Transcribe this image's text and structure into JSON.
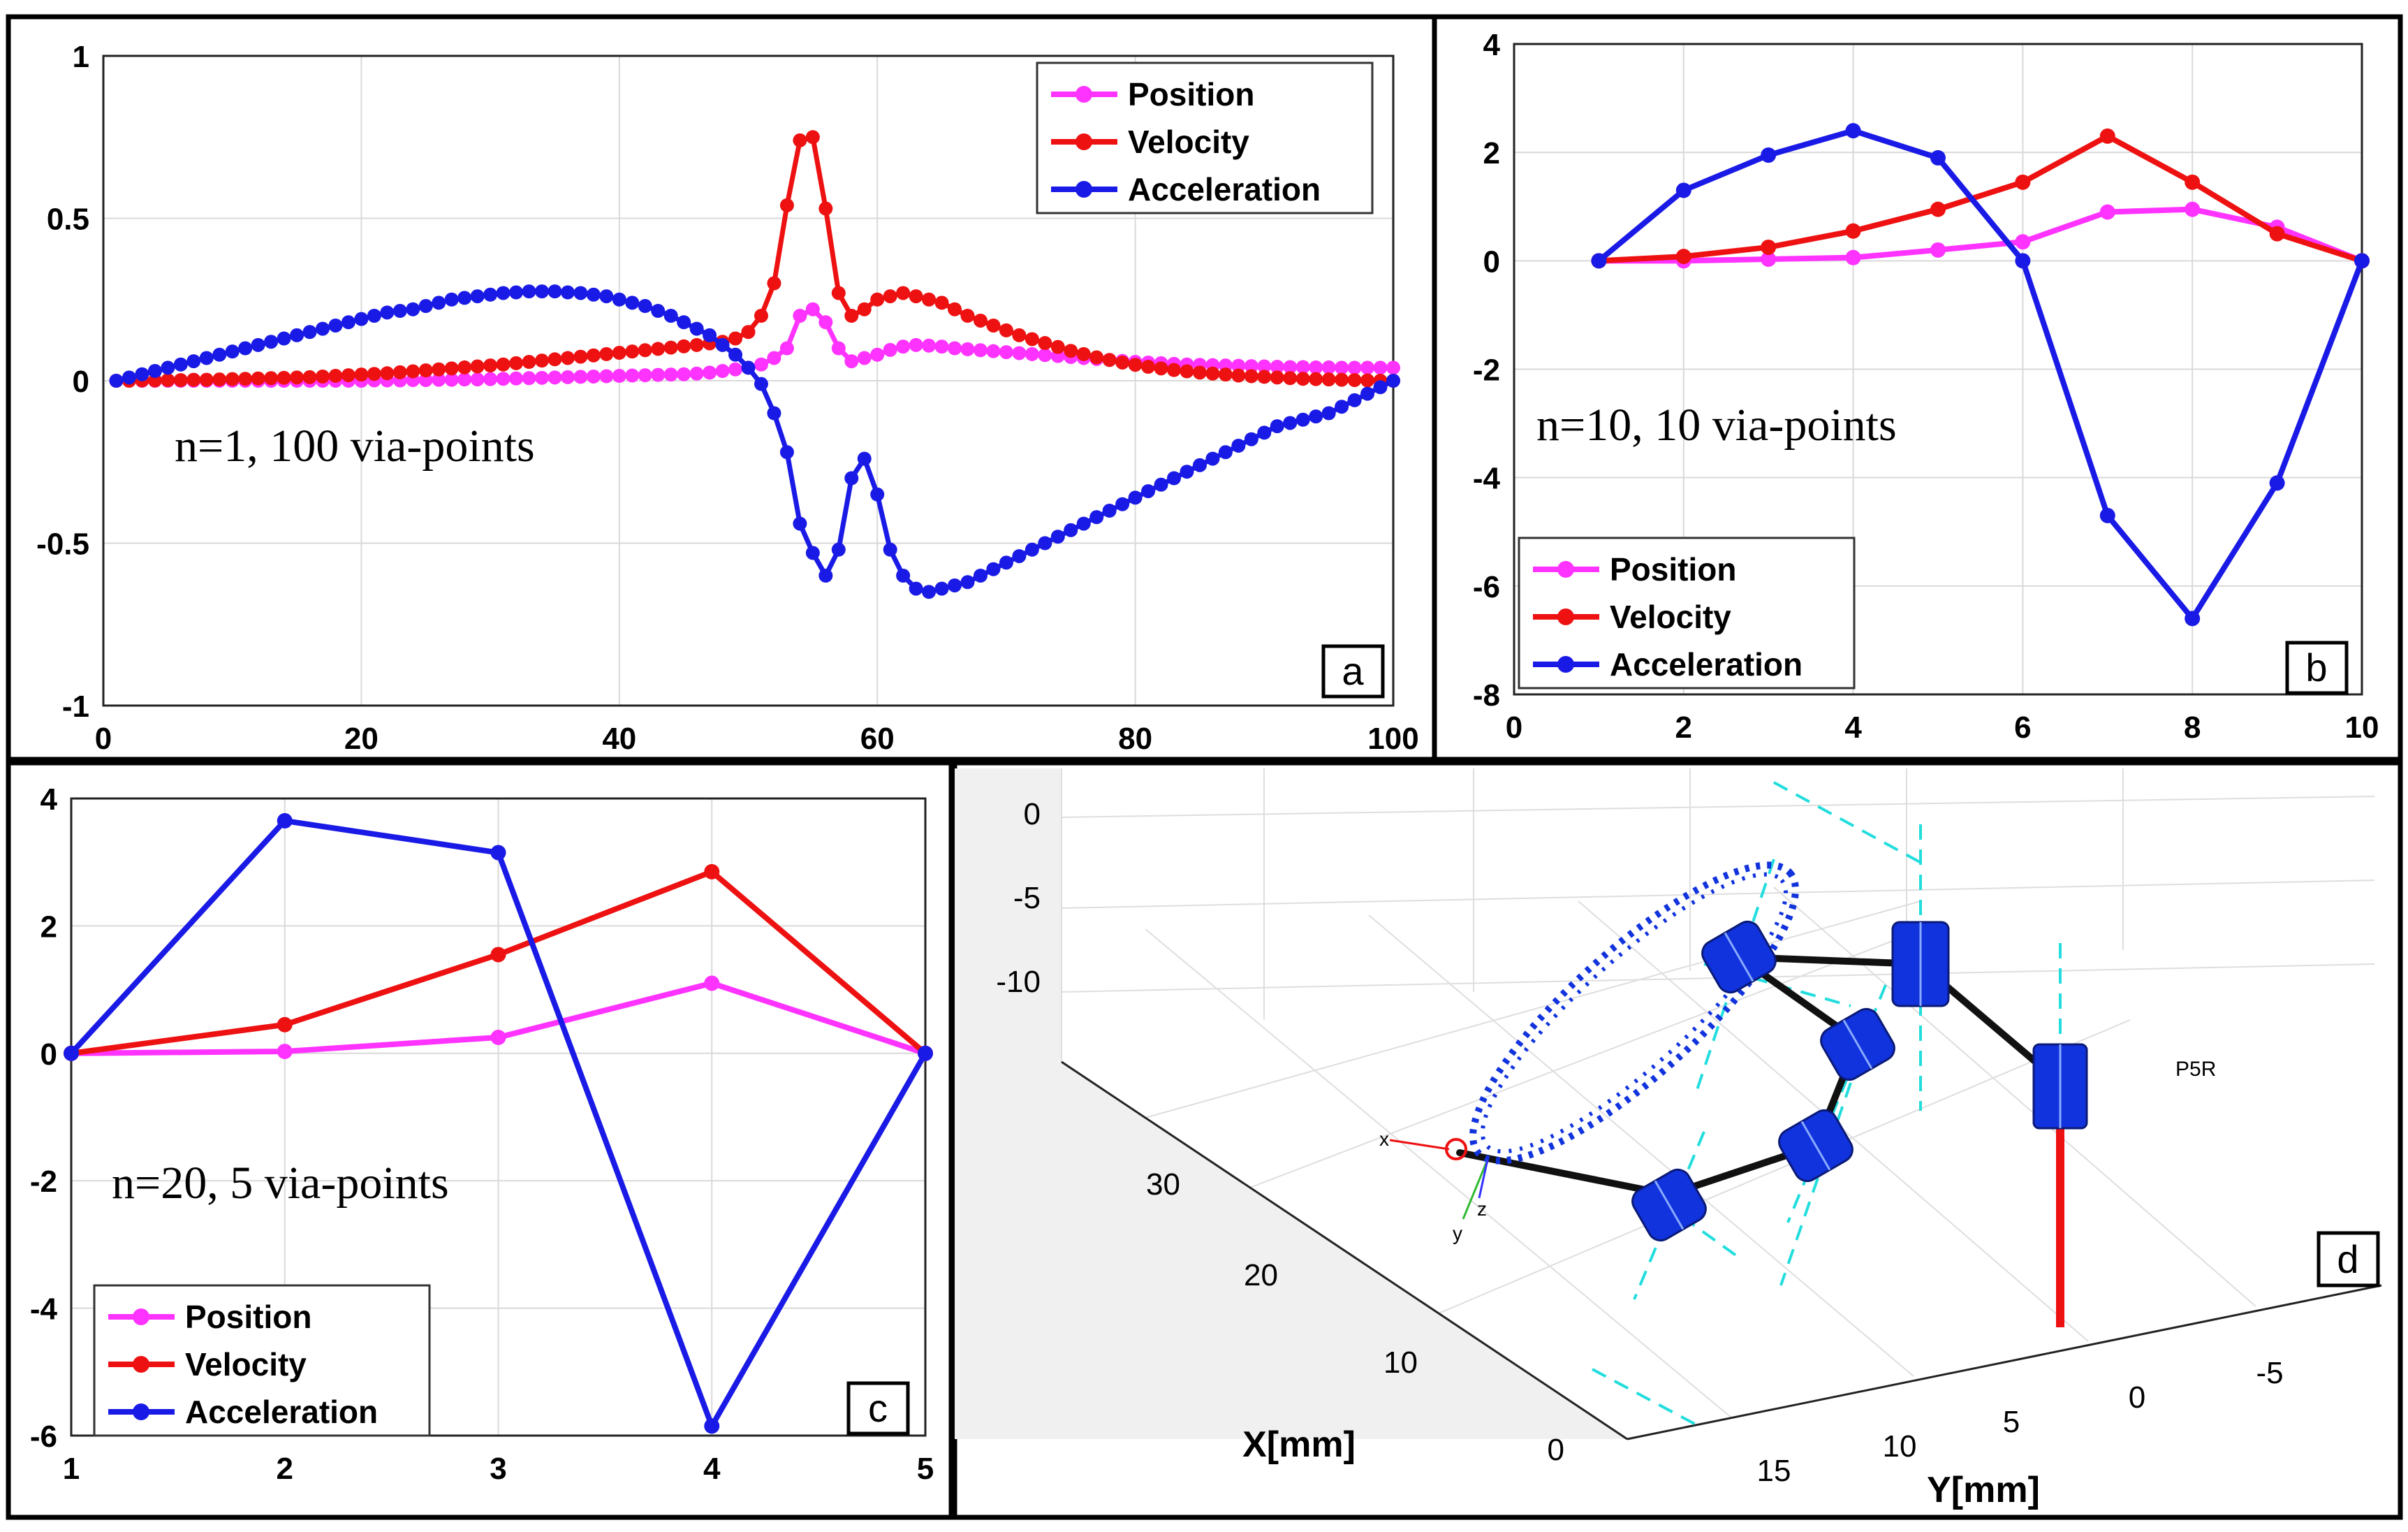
{
  "colors": {
    "position": "#ff33ff",
    "velocity": "#ee1111",
    "acceleration": "#1a1ae6",
    "grid": "#d9d9d9",
    "robot": "#1133dd",
    "axis_dash": "#22dddd",
    "link": "#111111",
    "post": "#ee1111"
  },
  "chart_data": [
    {
      "type": "line",
      "id": "a",
      "badge": "a",
      "annotation": "n=1,   100 via-points",
      "xlim": [
        0,
        100
      ],
      "ylim": [
        -1,
        1
      ],
      "xticks": [
        0,
        20,
        40,
        60,
        80,
        100
      ],
      "yticks": [
        -1,
        -0.5,
        0,
        0.5,
        1
      ],
      "xtick_labels": [
        "0",
        "20",
        "40",
        "60",
        "80",
        "100"
      ],
      "ytick_labels": [
        "-1",
        "-0.5",
        "0",
        "0.5",
        "1"
      ],
      "grid": true,
      "legend_position": "top-right",
      "x": [
        1,
        2,
        3,
        4,
        5,
        6,
        7,
        8,
        9,
        10,
        11,
        12,
        13,
        14,
        15,
        16,
        17,
        18,
        19,
        20,
        21,
        22,
        23,
        24,
        25,
        26,
        27,
        28,
        29,
        30,
        31,
        32,
        33,
        34,
        35,
        36,
        37,
        38,
        39,
        40,
        41,
        42,
        43,
        44,
        45,
        46,
        47,
        48,
        49,
        50,
        51,
        52,
        53,
        54,
        55,
        56,
        57,
        58,
        59,
        60,
        61,
        62,
        63,
        64,
        65,
        66,
        67,
        68,
        69,
        70,
        71,
        72,
        73,
        74,
        75,
        76,
        77,
        78,
        79,
        80,
        81,
        82,
        83,
        84,
        85,
        86,
        87,
        88,
        89,
        90,
        91,
        92,
        93,
        94,
        95,
        96,
        97,
        98,
        99,
        100
      ],
      "series": [
        {
          "name": "Position",
          "color": "#ff33ff",
          "values": [
            0,
            0,
            0,
            0,
            0,
            0,
            0,
            0,
            0,
            0,
            0,
            0,
            0,
            0,
            0,
            0,
            0,
            0,
            0,
            0,
            0.001,
            0.001,
            0.001,
            0.002,
            0.002,
            0.003,
            0.003,
            0.004,
            0.004,
            0.005,
            0.006,
            0.007,
            0.008,
            0.009,
            0.01,
            0.011,
            0.012,
            0.013,
            0.014,
            0.015,
            0.016,
            0.017,
            0.018,
            0.019,
            0.02,
            0.022,
            0.025,
            0.03,
            0.035,
            0.04,
            0.05,
            0.07,
            0.1,
            0.2,
            0.22,
            0.18,
            0.1,
            0.06,
            0.07,
            0.08,
            0.095,
            0.105,
            0.11,
            0.108,
            0.105,
            0.1,
            0.097,
            0.094,
            0.091,
            0.088,
            0.085,
            0.082,
            0.079,
            0.076,
            0.073,
            0.07,
            0.067,
            0.064,
            0.061,
            0.058,
            0.056,
            0.054,
            0.052,
            0.05,
            0.049,
            0.048,
            0.047,
            0.046,
            0.045,
            0.044,
            0.043,
            0.042,
            0.042,
            0.041,
            0.041,
            0.04,
            0.04,
            0.04,
            0.04,
            0.04
          ]
        },
        {
          "name": "Velocity",
          "color": "#ee1111",
          "values": [
            0,
            0,
            0.001,
            0.001,
            0.002,
            0.002,
            0.003,
            0.003,
            0.004,
            0.005,
            0.006,
            0.007,
            0.008,
            0.009,
            0.01,
            0.011,
            0.013,
            0.015,
            0.017,
            0.019,
            0.021,
            0.023,
            0.026,
            0.029,
            0.032,
            0.035,
            0.038,
            0.041,
            0.044,
            0.047,
            0.05,
            0.054,
            0.058,
            0.062,
            0.066,
            0.07,
            0.074,
            0.078,
            0.082,
            0.086,
            0.09,
            0.094,
            0.098,
            0.102,
            0.106,
            0.11,
            0.115,
            0.12,
            0.13,
            0.15,
            0.2,
            0.3,
            0.54,
            0.74,
            0.75,
            0.53,
            0.27,
            0.2,
            0.22,
            0.25,
            0.26,
            0.27,
            0.26,
            0.25,
            0.24,
            0.22,
            0.2,
            0.185,
            0.17,
            0.155,
            0.14,
            0.128,
            0.116,
            0.104,
            0.092,
            0.082,
            0.072,
            0.064,
            0.056,
            0.049,
            0.043,
            0.038,
            0.033,
            0.029,
            0.025,
            0.022,
            0.019,
            0.016,
            0.014,
            0.012,
            0.01,
            0.008,
            0.006,
            0.005,
            0.004,
            0.003,
            0.002,
            0.001,
            0,
            0
          ]
        },
        {
          "name": "Acceleration",
          "color": "#1a1ae6",
          "values": [
            0,
            0.01,
            0.02,
            0.03,
            0.04,
            0.05,
            0.06,
            0.07,
            0.08,
            0.09,
            0.1,
            0.11,
            0.12,
            0.13,
            0.14,
            0.15,
            0.16,
            0.17,
            0.18,
            0.19,
            0.2,
            0.21,
            0.215,
            0.22,
            0.23,
            0.24,
            0.25,
            0.255,
            0.26,
            0.265,
            0.27,
            0.272,
            0.275,
            0.275,
            0.275,
            0.272,
            0.27,
            0.265,
            0.26,
            0.25,
            0.24,
            0.23,
            0.215,
            0.2,
            0.18,
            0.16,
            0.14,
            0.11,
            0.08,
            0.04,
            -0.01,
            -0.1,
            -0.22,
            -0.44,
            -0.53,
            -0.6,
            -0.52,
            -0.3,
            -0.24,
            -0.35,
            -0.52,
            -0.6,
            -0.64,
            -0.65,
            -0.64,
            -0.63,
            -0.62,
            -0.6,
            -0.58,
            -0.56,
            -0.54,
            -0.52,
            -0.5,
            -0.48,
            -0.46,
            -0.44,
            -0.42,
            -0.4,
            -0.38,
            -0.36,
            -0.34,
            -0.32,
            -0.3,
            -0.28,
            -0.26,
            -0.24,
            -0.22,
            -0.2,
            -0.18,
            -0.16,
            -0.14,
            -0.13,
            -0.12,
            -0.11,
            -0.1,
            -0.08,
            -0.06,
            -0.04,
            -0.02,
            0
          ]
        }
      ]
    },
    {
      "type": "line",
      "id": "b",
      "badge": "b",
      "annotation": "n=10,   10 via-points",
      "xlim": [
        0,
        10
      ],
      "ylim": [
        -8,
        4
      ],
      "xticks": [
        0,
        2,
        4,
        6,
        8,
        10
      ],
      "yticks": [
        -8,
        -6,
        -4,
        -2,
        0,
        2,
        4
      ],
      "xtick_labels": [
        "0",
        "2",
        "4",
        "6",
        "8",
        "10"
      ],
      "ytick_labels": [
        "-8",
        "-6",
        "-4",
        "-2",
        "0",
        "2",
        "4"
      ],
      "grid": true,
      "legend_position": "bottom-left",
      "x": [
        1,
        2,
        3,
        4,
        5,
        6,
        7,
        8,
        9,
        10
      ],
      "series": [
        {
          "name": "Position",
          "color": "#ff33ff",
          "values": [
            0,
            0,
            0.03,
            0.06,
            0.2,
            0.35,
            0.9,
            0.95,
            0.62,
            0
          ]
        },
        {
          "name": "Velocity",
          "color": "#ee1111",
          "values": [
            0,
            0.08,
            0.25,
            0.55,
            0.95,
            1.45,
            2.3,
            1.45,
            0.5,
            0
          ]
        },
        {
          "name": "Acceleration",
          "color": "#1a1ae6",
          "values": [
            0,
            1.3,
            1.95,
            2.4,
            1.9,
            0,
            -4.7,
            -6.6,
            -4.1,
            0
          ]
        }
      ]
    },
    {
      "type": "line",
      "id": "c",
      "badge": "c",
      "annotation": "n=20,   5 via-points",
      "xlim": [
        1,
        5
      ],
      "ylim": [
        -6,
        4
      ],
      "xticks": [
        1,
        2,
        3,
        4,
        5
      ],
      "yticks": [
        -6,
        -4,
        -2,
        0,
        2,
        4
      ],
      "xtick_labels": [
        "1",
        "2",
        "3",
        "4",
        "5"
      ],
      "ytick_labels": [
        "-6",
        "-4",
        "-2",
        "0",
        "2",
        "4"
      ],
      "grid": true,
      "legend_position": "bottom-left",
      "x": [
        1,
        2,
        3,
        4,
        5
      ],
      "series": [
        {
          "name": "Position",
          "color": "#ff33ff",
          "values": [
            0,
            0.03,
            0.25,
            1.1,
            0
          ]
        },
        {
          "name": "Velocity",
          "color": "#ee1111",
          "values": [
            0,
            0.45,
            1.55,
            2.85,
            0
          ]
        },
        {
          "name": "Acceleration",
          "color": "#1a1ae6",
          "values": [
            0,
            3.65,
            3.15,
            -5.85,
            0
          ]
        }
      ]
    }
  ],
  "panel_d": {
    "badge": "d",
    "x_axis_label": "X[mm]",
    "y_axis_label": "Y[mm]",
    "robot_label": "P5R",
    "z_tick_labels": [
      "0",
      "-5",
      "-10"
    ],
    "x_tick_labels": [
      "30",
      "20",
      "10",
      "0"
    ],
    "y_tick_labels": [
      "15",
      "10",
      "5",
      "0",
      "-5"
    ],
    "frame_labels": [
      "x",
      "y",
      "z"
    ]
  }
}
